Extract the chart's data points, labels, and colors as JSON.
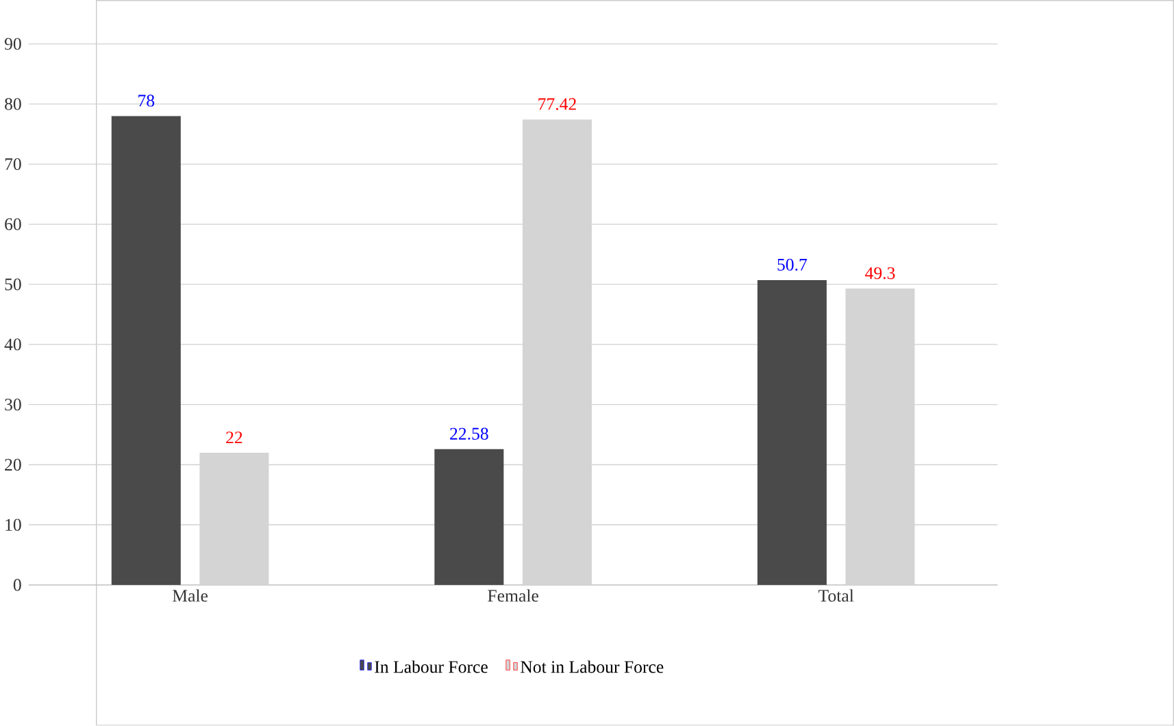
{
  "chart_data": {
    "type": "bar",
    "categories": [
      "Male",
      "Female",
      "Total"
    ],
    "series": [
      {
        "name": "In Labour Force",
        "color": "#4a4a4a",
        "values": [
          78,
          22.58,
          50.7
        ]
      },
      {
        "name": "Not in Labour Force",
        "color": "#d4d4d4",
        "values": [
          22,
          77.42,
          49.3
        ]
      }
    ],
    "ylim": [
      0,
      90
    ],
    "yticks": [
      0,
      10,
      20,
      30,
      40,
      50,
      60,
      70,
      80,
      90
    ],
    "grid": "y",
    "legend": "bottom",
    "data_labels": true
  }
}
